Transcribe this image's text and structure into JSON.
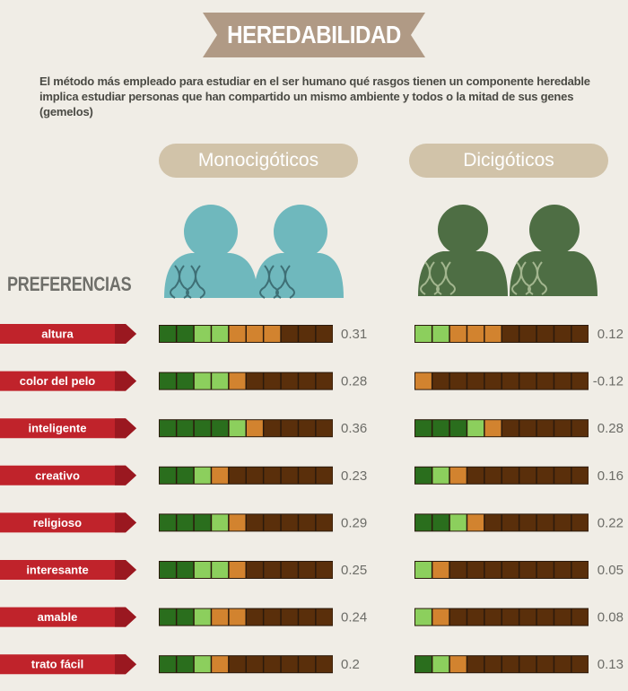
{
  "title": "HEREDABILIDAD",
  "intro": "El método más empleado para estudiar en el ser humano qué rasgos tienen un componente heredable implica estudiar personas que han compartido un mismo ambiente y todos o la mitad de sus genes (gemelos)",
  "preferences_heading": "PREFERENCIAS",
  "colors": {
    "banner": "#b09a85",
    "pill": "#d1c3a9",
    "mono_people": "#6fb8bd",
    "di_people": "#4e6e44",
    "label_ribbon": "#c0232b",
    "seg_dark_green": "#2a6e1d",
    "seg_light_green": "#8ccf5d",
    "seg_orange": "#d2832f",
    "seg_brown": "#5a2f0b"
  },
  "chart_data": {
    "type": "table",
    "title": "HEREDABILIDAD",
    "segments_per_bar": 10,
    "columns": [
      "Monocigóticos",
      "Dicigóticos"
    ],
    "rows": [
      {
        "label": "altura",
        "mono": 0.31,
        "di": 0.12,
        "mono_segments": [
          "dg",
          "dg",
          "lg",
          "lg",
          "or",
          "or",
          "or",
          "br",
          "br",
          "br"
        ],
        "di_segments": [
          "lg",
          "lg",
          "or",
          "or",
          "or",
          "br",
          "br",
          "br",
          "br",
          "br"
        ]
      },
      {
        "label": "color del pelo",
        "mono": 0.28,
        "di": -0.12,
        "mono_segments": [
          "dg",
          "dg",
          "lg",
          "lg",
          "or",
          "br",
          "br",
          "br",
          "br",
          "br"
        ],
        "di_segments": [
          "or",
          "br",
          "br",
          "br",
          "br",
          "br",
          "br",
          "br",
          "br",
          "br"
        ]
      },
      {
        "label": "inteligente",
        "mono": 0.36,
        "di": 0.28,
        "mono_segments": [
          "dg",
          "dg",
          "dg",
          "dg",
          "lg",
          "or",
          "br",
          "br",
          "br",
          "br"
        ],
        "di_segments": [
          "dg",
          "dg",
          "dg",
          "lg",
          "or",
          "br",
          "br",
          "br",
          "br",
          "br"
        ]
      },
      {
        "label": "creativo",
        "mono": 0.23,
        "di": 0.16,
        "mono_segments": [
          "dg",
          "dg",
          "lg",
          "or",
          "br",
          "br",
          "br",
          "br",
          "br",
          "br"
        ],
        "di_segments": [
          "dg",
          "lg",
          "or",
          "br",
          "br",
          "br",
          "br",
          "br",
          "br",
          "br"
        ]
      },
      {
        "label": "religioso",
        "mono": 0.29,
        "di": 0.22,
        "mono_segments": [
          "dg",
          "dg",
          "dg",
          "lg",
          "or",
          "br",
          "br",
          "br",
          "br",
          "br"
        ],
        "di_segments": [
          "dg",
          "dg",
          "lg",
          "or",
          "br",
          "br",
          "br",
          "br",
          "br",
          "br"
        ]
      },
      {
        "label": "interesante",
        "mono": 0.25,
        "di": 0.05,
        "mono_segments": [
          "dg",
          "dg",
          "lg",
          "lg",
          "or",
          "br",
          "br",
          "br",
          "br",
          "br"
        ],
        "di_segments": [
          "lg",
          "or",
          "br",
          "br",
          "br",
          "br",
          "br",
          "br",
          "br",
          "br"
        ]
      },
      {
        "label": "amable",
        "mono": 0.24,
        "di": 0.08,
        "mono_segments": [
          "dg",
          "dg",
          "lg",
          "or",
          "or",
          "br",
          "br",
          "br",
          "br",
          "br"
        ],
        "di_segments": [
          "lg",
          "or",
          "br",
          "br",
          "br",
          "br",
          "br",
          "br",
          "br",
          "br"
        ]
      },
      {
        "label": "trato fácil",
        "mono": 0.2,
        "di": 0.13,
        "mono_segments": [
          "dg",
          "dg",
          "lg",
          "or",
          "br",
          "br",
          "br",
          "br",
          "br",
          "br"
        ],
        "di_segments": [
          "dg",
          "lg",
          "or",
          "br",
          "br",
          "br",
          "br",
          "br",
          "br",
          "br"
        ]
      }
    ]
  }
}
